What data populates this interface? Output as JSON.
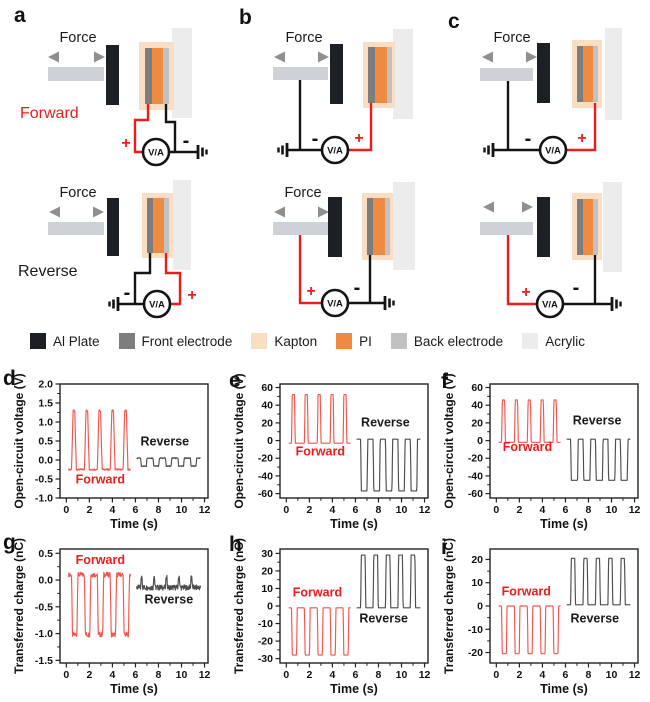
{
  "diagrams": {
    "force_label": "Force",
    "meter_label": "V/A",
    "plus": "+",
    "minus": "-",
    "row_labels": {
      "forward": "Forward",
      "reverse": "Reverse"
    },
    "panels": [
      {
        "letter": "a"
      },
      {
        "letter": "b"
      },
      {
        "letter": "c"
      }
    ]
  },
  "legend": {
    "items": [
      {
        "label": "Al Plate",
        "color": "#1d1f26"
      },
      {
        "label": "Front electrode",
        "color": "#7d7d80"
      },
      {
        "label": "Kapton",
        "color": "#fadec3"
      },
      {
        "label": "PI",
        "color": "#ee8b41"
      },
      {
        "label": "Back electrode",
        "color": "#c1c1c4"
      },
      {
        "label": "Acrylic",
        "color": "#ececec"
      }
    ]
  },
  "colors": {
    "red": "#ed1c1c",
    "black": "#141414",
    "arm": "#ccd2d8",
    "trace_forward": "#f2564e",
    "trace_reverse": "#4d4d4d"
  },
  "chart_data": [
    {
      "panel": "d",
      "type": "line",
      "xlabel": "Time (s)",
      "ylabel": "Open-circuit voltage (V)",
      "xlim": [
        -0.55,
        12.3
      ],
      "ylim": [
        -1.0,
        2.0
      ],
      "xticks": [
        "0",
        "2",
        "4",
        "6",
        "8",
        "10",
        "12"
      ],
      "xminor": [
        1,
        3,
        5,
        7,
        9,
        11
      ],
      "yticks": [
        "2.0",
        "1.5",
        "1.0",
        "0.5",
        "0.0",
        "-0.5",
        "-1.0"
      ],
      "series": [
        {
          "name": "Forward",
          "color": "#f2564e",
          "label_color": "#ed1c1c",
          "domain": [
            0.2,
            5.6
          ],
          "baseline": -0.25,
          "peak": 1.3,
          "start": 0.45,
          "period": 1.12,
          "n": 5,
          "width": 0.42,
          "rise": 0.14,
          "noise": 0.02,
          "label_x": 2.95,
          "label_y": -0.62
        },
        {
          "name": "Reverse",
          "color": "#4d4d4d",
          "label_color": "#1a1a1a",
          "domain": [
            6.1,
            11.65
          ],
          "baseline": 0.05,
          "peak": -0.16,
          "start": 6.45,
          "period": 1.08,
          "n": 5,
          "width": 0.55,
          "rise": 0.06,
          "noise": 0.012,
          "label_x": 8.55,
          "label_y": 0.38
        }
      ]
    },
    {
      "panel": "e",
      "type": "line",
      "xlabel": "Time (s)",
      "ylabel": "Open-circuit voltage (V)",
      "xlim": [
        -0.55,
        12.3
      ],
      "ylim": [
        -65,
        64
      ],
      "xticks": [
        "0",
        "2",
        "4",
        "6",
        "8",
        "10",
        "12"
      ],
      "xminor": [
        1,
        3,
        5,
        7,
        9,
        11
      ],
      "yticks": [
        "60",
        "40",
        "20",
        "0",
        "-20",
        "-40",
        "-60"
      ],
      "series": [
        {
          "name": "Forward",
          "color": "#f2564e",
          "label_color": "#ed1c1c",
          "domain": [
            0.2,
            5.6
          ],
          "baseline": -3,
          "peak": 52,
          "start": 0.45,
          "period": 1.12,
          "n": 5,
          "width": 0.32,
          "rise": 0.06,
          "noise": 0,
          "label_x": 2.95,
          "label_y": -17
        },
        {
          "name": "Reverse",
          "color": "#4d4d4d",
          "label_color": "#1a1a1a",
          "domain": [
            6.1,
            11.65
          ],
          "baseline": 1.5,
          "peak": -57,
          "start": 6.45,
          "period": 1.08,
          "n": 5,
          "width": 0.62,
          "rise": 0.06,
          "noise": 0,
          "label_x": 8.6,
          "label_y": 16
        }
      ]
    },
    {
      "panel": "f",
      "type": "line",
      "xlabel": "Time (s)",
      "ylabel": "Open-circuit voltage (V)",
      "xlim": [
        -0.55,
        12.3
      ],
      "ylim": [
        -65,
        64
      ],
      "xticks": [
        "0",
        "2",
        "4",
        "6",
        "8",
        "10",
        "12"
      ],
      "xminor": [
        1,
        3,
        5,
        7,
        9,
        11
      ],
      "yticks": [
        "60",
        "40",
        "20",
        "0",
        "-20",
        "-40",
        "-60"
      ],
      "series": [
        {
          "name": "Forward",
          "color": "#f2564e",
          "label_color": "#ed1c1c",
          "domain": [
            0.2,
            5.6
          ],
          "baseline": -2,
          "peak": 46,
          "start": 0.45,
          "period": 1.12,
          "n": 5,
          "width": 0.34,
          "rise": 0.07,
          "noise": 0,
          "label_x": 2.7,
          "label_y": -12
        },
        {
          "name": "Reverse",
          "color": "#4d4d4d",
          "label_color": "#1a1a1a",
          "domain": [
            6.1,
            11.65
          ],
          "baseline": 1.5,
          "peak": -45,
          "start": 6.45,
          "period": 1.08,
          "n": 5,
          "width": 0.66,
          "rise": 0.06,
          "noise": 0,
          "label_x": 8.75,
          "label_y": 18
        }
      ]
    },
    {
      "panel": "g",
      "type": "line",
      "xlabel": "Time (s)",
      "ylabel": "Transferred charge (nC)",
      "xlim": [
        -0.55,
        12.3
      ],
      "ylim": [
        -1.55,
        0.58
      ],
      "xticks": [
        "0",
        "2",
        "4",
        "6",
        "8",
        "10",
        "12"
      ],
      "xminor": [
        1,
        3,
        5,
        7,
        9,
        11
      ],
      "yticks": [
        "0.5",
        "0.0",
        "-0.5",
        "-1.0",
        "-1.5"
      ],
      "series": [
        {
          "name": "Forward",
          "color": "#f2564e",
          "label_color": "#ed1c1c",
          "domain": [
            0.2,
            5.6
          ],
          "baseline": 0.1,
          "peak": -1.02,
          "start": 0.45,
          "period": 1.12,
          "n": 5,
          "width": 0.55,
          "rise": 0.08,
          "noise": 0.045,
          "label_x": 2.95,
          "label_y": 0.3
        },
        {
          "name": "Reverse",
          "color": "#4d4d4d",
          "label_color": "#1a1a1a",
          "domain": [
            6.1,
            11.65
          ],
          "baseline": -0.14,
          "peak": 0.07,
          "start": 6.45,
          "period": 1.08,
          "n": 5,
          "width": 0.18,
          "rise": 0.06,
          "noise": 0.05,
          "label_x": 8.9,
          "label_y": -0.44
        }
      ]
    },
    {
      "panel": "h",
      "type": "line",
      "xlabel": "Time (s)",
      "ylabel": "Transferred charge (nC)",
      "xlim": [
        -0.55,
        12.3
      ],
      "ylim": [
        -32.5,
        32.5
      ],
      "xticks": [
        "0",
        "2",
        "4",
        "6",
        "8",
        "10",
        "12"
      ],
      "xminor": [
        1,
        3,
        5,
        7,
        9,
        11
      ],
      "yticks": [
        "30",
        "20",
        "10",
        "0",
        "-10",
        "-20",
        "-30"
      ],
      "series": [
        {
          "name": "Forward",
          "color": "#f2564e",
          "label_color": "#ed1c1c",
          "domain": [
            0.2,
            5.6
          ],
          "baseline": -1,
          "peak": -28,
          "start": 0.45,
          "period": 1.12,
          "n": 5,
          "width": 0.5,
          "rise": 0.06,
          "noise": 0,
          "label_x": 2.7,
          "label_y": 5.5
        },
        {
          "name": "Reverse",
          "color": "#4d4d4d",
          "label_color": "#1a1a1a",
          "domain": [
            6.1,
            11.65
          ],
          "baseline": -1,
          "peak": 29,
          "start": 6.45,
          "period": 1.08,
          "n": 5,
          "width": 0.45,
          "rise": 0.06,
          "noise": 0,
          "label_x": 8.45,
          "label_y": -9.5
        }
      ]
    },
    {
      "panel": "i",
      "type": "line",
      "xlabel": "Time (s)",
      "ylabel": "Transferred charge (nC)",
      "xlim": [
        -0.55,
        12.3
      ],
      "ylim": [
        -24.5,
        24.5
      ],
      "xticks": [
        "0",
        "2",
        "4",
        "6",
        "8",
        "10",
        "12"
      ],
      "xminor": [
        1,
        3,
        5,
        7,
        9,
        11
      ],
      "yticks": [
        "20",
        "10",
        "0",
        "-10",
        "-20"
      ],
      "series": [
        {
          "name": "Forward",
          "color": "#f2564e",
          "label_color": "#ed1c1c",
          "domain": [
            0.2,
            5.6
          ],
          "baseline": 0,
          "peak": -20.5,
          "start": 0.45,
          "period": 1.12,
          "n": 5,
          "width": 0.48,
          "rise": 0.06,
          "noise": 0,
          "label_x": 2.6,
          "label_y": 4.5
        },
        {
          "name": "Reverse",
          "color": "#4d4d4d",
          "label_color": "#1a1a1a",
          "domain": [
            6.1,
            11.65
          ],
          "baseline": 0.5,
          "peak": 20.5,
          "start": 6.45,
          "period": 1.08,
          "n": 5,
          "width": 0.42,
          "rise": 0.06,
          "noise": 0,
          "label_x": 8.55,
          "label_y": -7
        }
      ]
    }
  ]
}
